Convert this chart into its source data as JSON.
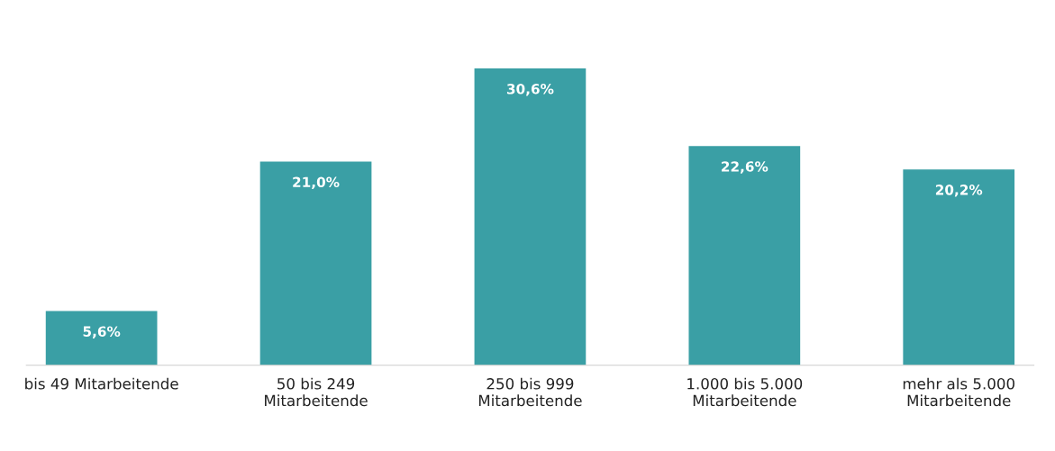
{
  "chart_data": {
    "type": "bar",
    "categories": [
      "bis 49 Mitarbeitende",
      "50 bis 249\nMitarbeitende",
      "250 bis 999\nMitarbeitende",
      "1.000 bis 5.000\nMitarbeitende",
      "mehr als 5.000\nMitarbeitende"
    ],
    "values": [
      5.6,
      21.0,
      30.6,
      22.6,
      20.2
    ],
    "value_labels": [
      "5,6%",
      "21,0%",
      "30,6%",
      "22,6%",
      "20,2%"
    ],
    "color": "#3a9fa5",
    "grid": false,
    "legend": false
  }
}
